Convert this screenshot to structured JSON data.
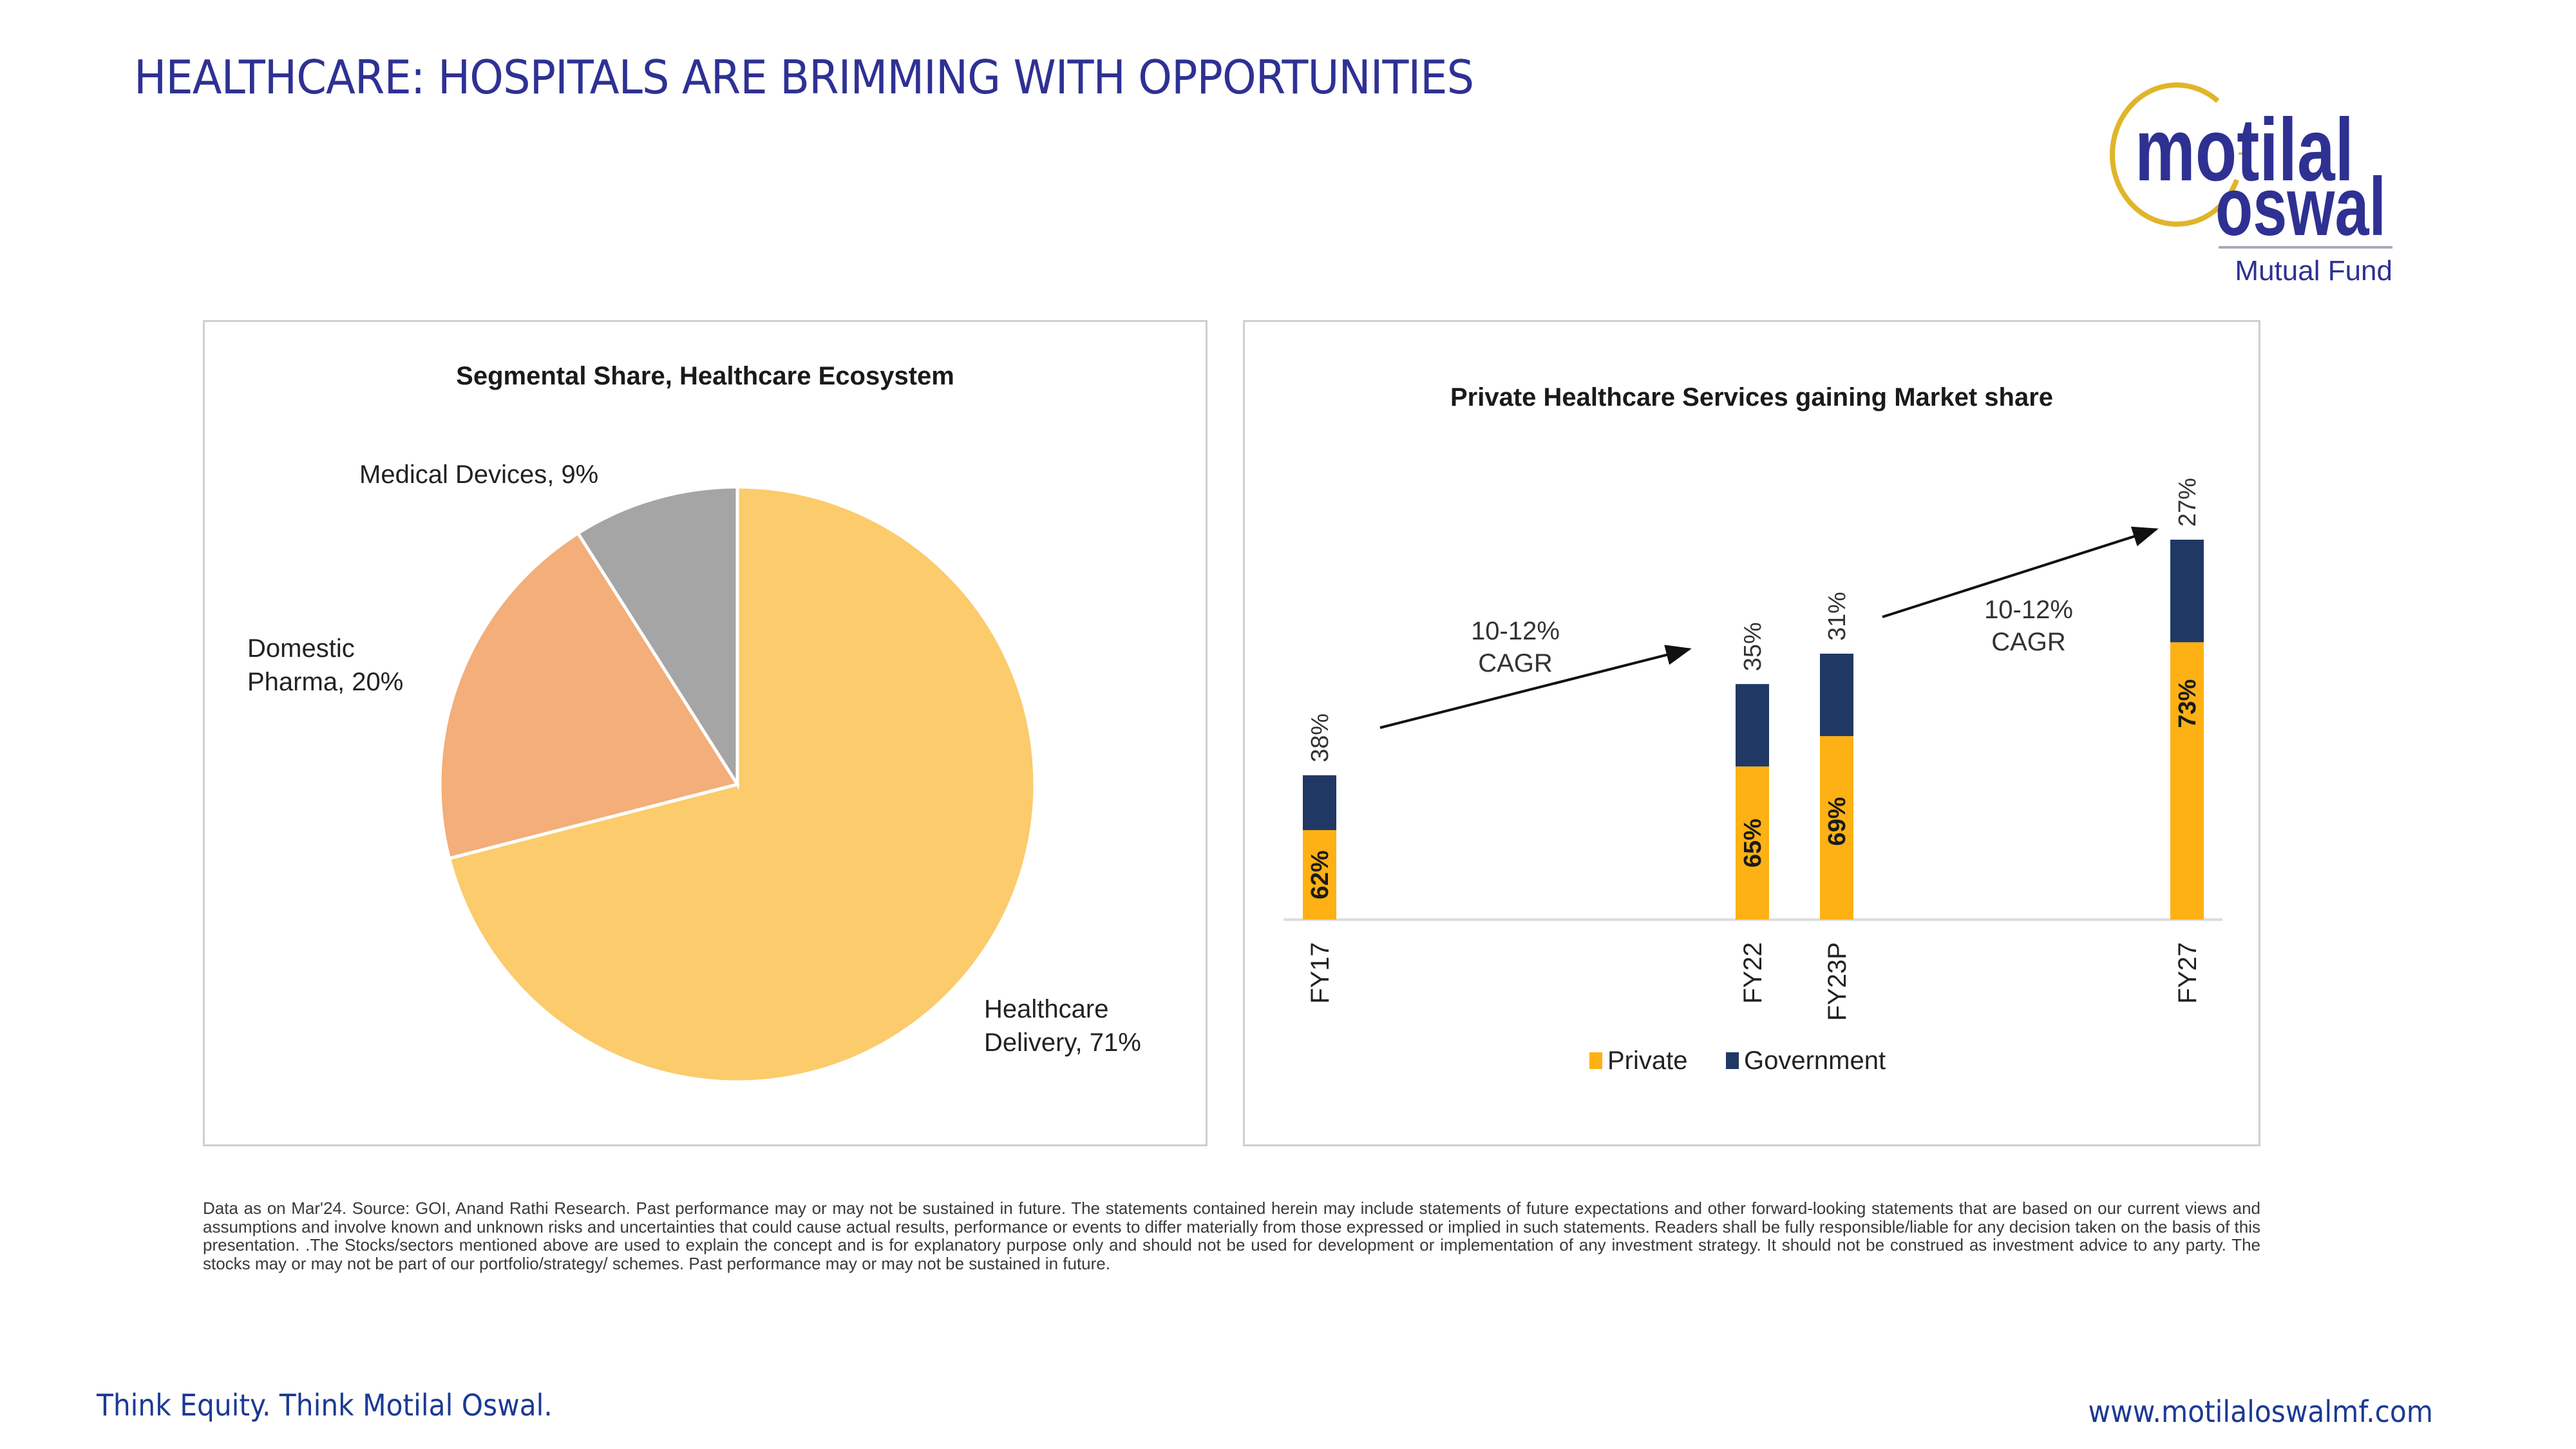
{
  "header": {
    "title": "HEALTHCARE: HOSPITALS ARE BRIMMING WITH OPPORTUNITIES"
  },
  "logo": {
    "line1": "motilal",
    "line2": "oswal",
    "tagline": "Mutual Fund",
    "colors": {
      "text": "#2e3192",
      "ring": "#e0b52a"
    }
  },
  "chart_data": [
    {
      "type": "pie",
      "title": "Segmental Share, Healthcare Ecosystem",
      "slices": [
        {
          "label": "Healthcare Delivery",
          "value": 71,
          "display": "Healthcare Delivery, 71%",
          "lines": [
            "Healthcare",
            "Delivery, 71%"
          ],
          "color": "#fbcb6c"
        },
        {
          "label": "Domestic Pharma",
          "value": 20,
          "display": "Domestic Pharma, 20%",
          "lines": [
            "Domestic",
            "Pharma, 20%"
          ],
          "color": "#f3ae79"
        },
        {
          "label": "Medical Devices",
          "value": 9,
          "display": "Medical Devices, 9%",
          "lines": [
            "Medical Devices, 9%"
          ],
          "color": "#a5a5a5"
        }
      ],
      "legend": "none"
    },
    {
      "type": "bar",
      "stacked": true,
      "title": "Private Healthcare Services gaining Market share",
      "categories": [
        "FY17",
        "FY22",
        "FY23P",
        "FY27"
      ],
      "relative_total_size": [
        38,
        62,
        70,
        100
      ],
      "series": [
        {
          "name": "Private",
          "color": "#fdb114",
          "values": [
            62,
            65,
            69,
            73
          ],
          "labels": [
            "62%",
            "65%",
            "69%",
            "73%"
          ]
        },
        {
          "name": "Government",
          "color": "#203864",
          "values": [
            38,
            35,
            31,
            27
          ],
          "labels": [
            "38%",
            "35%",
            "31%",
            "27%"
          ]
        }
      ],
      "annotations": [
        {
          "text_lines": [
            "10-12%",
            "CAGR"
          ],
          "from": "FY17",
          "to": "FY22"
        },
        {
          "text_lines": [
            "10-12%",
            "CAGR"
          ],
          "from": "FY23P",
          "to": "FY27"
        }
      ],
      "legend": "bottom",
      "xlabel": "",
      "ylabel": "",
      "grid": false
    }
  ],
  "disclaimer": "Data as on Mar'24. Source: GOI, Anand Rathi Research. Past performance may or may not be sustained in future. The statements contained herein may include statements of future expectations and other forward-looking statements that are based on our current views and assumptions and involve known and unknown risks and uncertainties that could cause actual results, performance or events to differ materially from those expressed or implied in such statements. Readers shall be fully responsible/liable for any decision taken on the basis of this presentation. .The Stocks/sectors mentioned above are used to explain the concept and is for explanatory purpose only and should not be used for development or implementation of any investment strategy. It should not be construed as investment advice to any party. The stocks may or may not be part of our portfolio/strategy/ schemes. Past performance may or may not be sustained in future.",
  "footer": {
    "tagline": "Think Equity. Think Motilal Oswal.",
    "website": "www.motilaloswalmf.com"
  }
}
